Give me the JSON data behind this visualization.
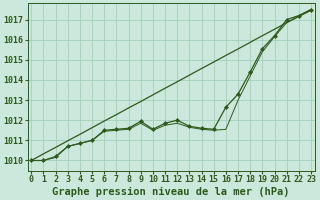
{
  "hours": [
    0,
    1,
    2,
    3,
    4,
    5,
    6,
    7,
    8,
    9,
    10,
    11,
    12,
    13,
    14,
    15,
    16,
    17,
    18,
    19,
    20,
    21,
    22,
    23
  ],
  "series_straight": [
    1010.0,
    1010.33,
    1010.65,
    1010.98,
    1011.3,
    1011.63,
    1011.96,
    1012.28,
    1012.61,
    1012.93,
    1013.26,
    1013.59,
    1013.91,
    1014.24,
    1014.57,
    1014.89,
    1015.22,
    1015.54,
    1015.87,
    1016.2,
    1016.52,
    1016.85,
    1017.17,
    1017.5
  ],
  "series_marked": [
    1010.0,
    1010.0,
    1010.2,
    1010.7,
    1010.85,
    1011.0,
    1011.5,
    1011.55,
    1011.6,
    1011.95,
    1011.55,
    1011.85,
    1012.0,
    1011.7,
    1011.6,
    1011.55,
    1012.65,
    1013.3,
    1014.4,
    1015.55,
    1016.2,
    1017.0,
    1017.2,
    1017.5
  ],
  "series_thin": [
    1010.0,
    1010.0,
    1010.15,
    1010.7,
    1010.85,
    1011.0,
    1011.45,
    1011.5,
    1011.55,
    1011.85,
    1011.5,
    1011.75,
    1011.85,
    1011.65,
    1011.55,
    1011.5,
    1011.55,
    1013.0,
    1014.2,
    1015.4,
    1016.15,
    1016.85,
    1017.15,
    1017.45
  ],
  "line_color": "#2d5a1b",
  "marker_color": "#2d5a1b",
  "bg_color": "#cce8dc",
  "grid_color": "#99ccb3",
  "title": "Graphe pression niveau de la mer (hPa)",
  "ylim": [
    1009.5,
    1017.8
  ],
  "yticks": [
    1010,
    1011,
    1012,
    1013,
    1014,
    1015,
    1016,
    1017
  ],
  "tick_fontsize": 6.0,
  "axis_label_fontsize": 7.5
}
